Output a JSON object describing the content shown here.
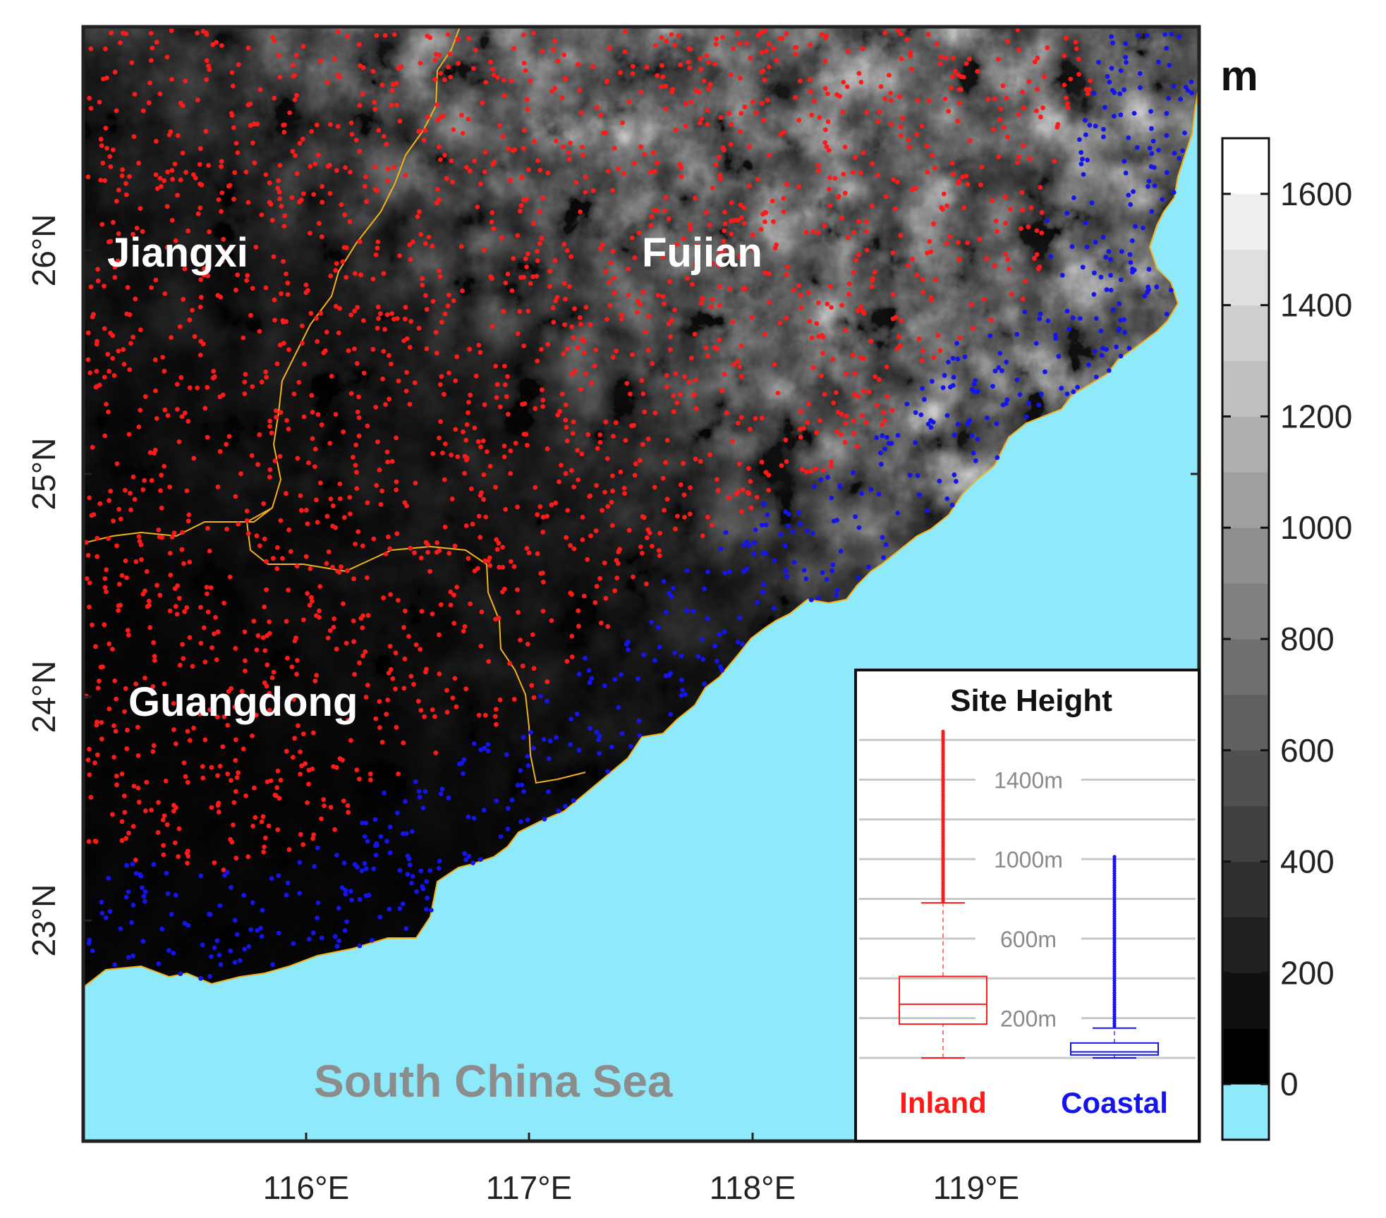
{
  "map": {
    "region_labels": [
      "Jiangxi",
      "Fujian",
      "Guangdong"
    ],
    "sea_label": "South China Sea",
    "x_ticks": [
      "116°E",
      "117°E",
      "118°E",
      "119°E"
    ],
    "y_ticks": [
      "26°N",
      "25°N",
      "24°N",
      "23°N"
    ],
    "colors": {
      "sea": "#8ee9fb",
      "inland_sites": "#ff1a1a",
      "coastal_sites": "#1414ee",
      "province_border": "#f2b21c",
      "terrain_low": "#000000",
      "terrain_high": "#ffffff"
    }
  },
  "colorbar": {
    "unit": "m",
    "ticks": [
      "1600",
      "1400",
      "1200",
      "1000",
      "800",
      "600",
      "400",
      "200",
      "0"
    ],
    "tick_values": [
      1600,
      1400,
      1200,
      1000,
      800,
      600,
      400,
      200,
      0
    ],
    "range": [
      -100,
      1700
    ],
    "step": 100
  },
  "inset": {
    "title": "Site Height",
    "categories": [
      "Inland",
      "Coastal"
    ],
    "gridline_labels": [
      "1400m",
      "1000m",
      "600m",
      "200m"
    ],
    "gridline_values": [
      1400,
      1000,
      600,
      200
    ],
    "ylim": [
      0,
      1650
    ]
  },
  "chart_data": {
    "type": "box",
    "title": "Site Height",
    "categories": [
      "Inland",
      "Coastal"
    ],
    "ylim": [
      0,
      1650
    ],
    "yunit": "m",
    "series": [
      {
        "name": "Inland",
        "color": "#ff1a1a",
        "whisker_low": 0,
        "q1": 170,
        "median": 270,
        "q3": 410,
        "whisker_high": 780,
        "outliers_from": 780,
        "outliers_to": 1650
      },
      {
        "name": "Coastal",
        "color": "#1414ee",
        "whisker_low": 0,
        "q1": 15,
        "median": 30,
        "q3": 75,
        "whisker_high": 150,
        "outliers_from": 150,
        "outliers_to": 1020
      }
    ]
  }
}
